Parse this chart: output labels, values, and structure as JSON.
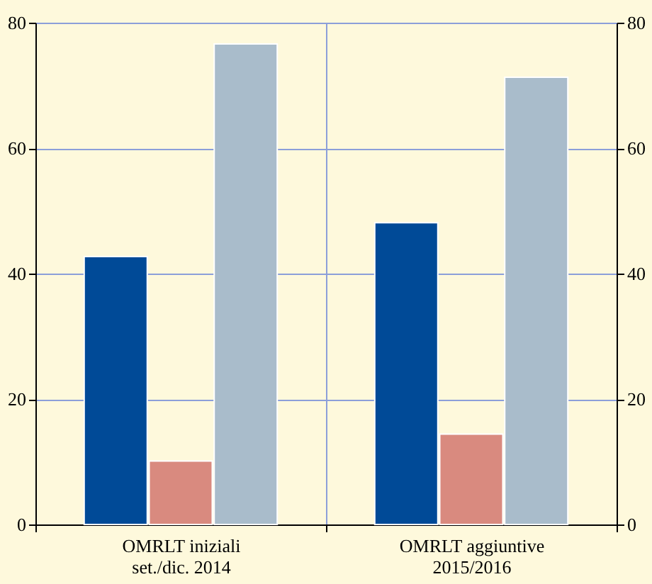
{
  "chart_data": {
    "type": "bar",
    "categories": [
      "OMRLT iniziali\nset./dic. 2014",
      "OMRLT aggiuntive\n2015/2016"
    ],
    "series": [
      {
        "color": "#004a97",
        "values": [
          42.7,
          48.1
        ]
      },
      {
        "color": "#d98a7f",
        "values": [
          10.1,
          14.4
        ]
      },
      {
        "color": "#a9bccb",
        "values": [
          76.6,
          71.3
        ]
      }
    ],
    "ylim": [
      0,
      80
    ],
    "yticks": [
      0,
      20,
      40,
      60,
      80
    ],
    "y2lim": [
      0,
      80
    ],
    "y2ticks": [
      0,
      20,
      40,
      60,
      80
    ],
    "grid": true
  }
}
